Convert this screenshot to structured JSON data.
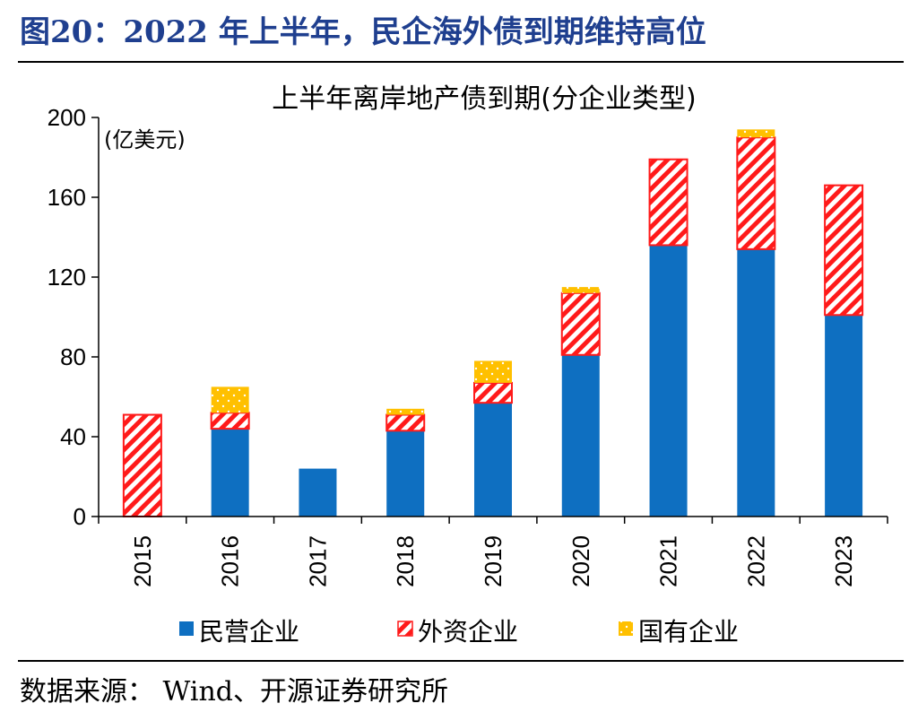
{
  "figure": {
    "title": "图20：2022 年上半年，民企海外债到期维持高位",
    "source": "数据来源： Wind、开源证券研究所"
  },
  "colors": {
    "private": "#0e6fc1",
    "foreign": "#ff1a1a",
    "state": "#ffc000",
    "title": "#1f3f8f"
  },
  "chart_data": {
    "type": "bar",
    "stacked": true,
    "title": "上半年离岸地产债到期(分企业类型)",
    "unit_label": "(亿美元)",
    "categories": [
      "2015",
      "2016",
      "2017",
      "2018",
      "2019",
      "2020",
      "2021",
      "2022",
      "2023"
    ],
    "series": [
      {
        "name": "民营企业",
        "values": [
          0,
          44,
          24,
          43,
          57,
          81,
          136,
          134,
          101
        ]
      },
      {
        "name": "外资企业",
        "values": [
          51,
          8,
          0,
          8,
          10,
          31,
          43,
          56,
          65
        ]
      },
      {
        "name": "国有企业",
        "values": [
          0,
          13,
          0,
          3,
          11,
          3,
          0,
          4,
          0
        ]
      }
    ],
    "ylim": [
      0,
      200
    ],
    "yticks": [
      "0",
      "40",
      "80",
      "120",
      "160",
      "200"
    ],
    "legend_position": "bottom"
  }
}
